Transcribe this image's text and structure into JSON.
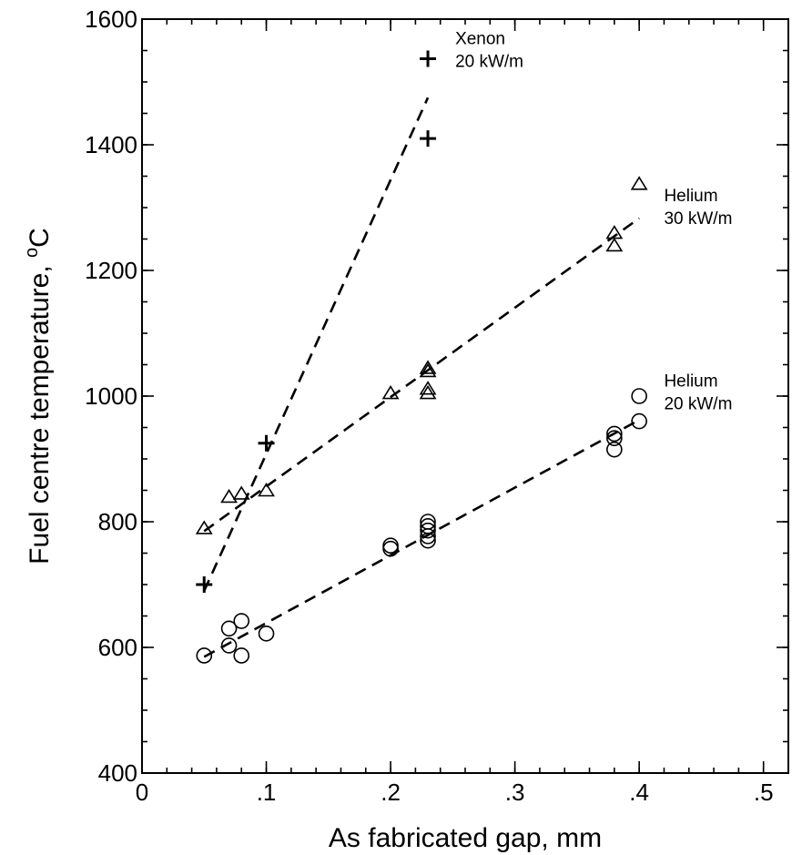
{
  "chart_data": {
    "type": "scatter",
    "title": "",
    "xlabel": "As fabricated gap, mm",
    "ylabel_main": "Fuel centre temperature, ",
    "ylabel_super": "o",
    "ylabel_tail": "C",
    "xlim": [
      0,
      0.52
    ],
    "ylim": [
      400,
      1600
    ],
    "x_ticks": [
      {
        "value": 0,
        "label": "0"
      },
      {
        "value": 0.1,
        "label": ".1"
      },
      {
        "value": 0.2,
        "label": ".2"
      },
      {
        "value": 0.3,
        "label": ".3"
      },
      {
        "value": 0.4,
        "label": ".4"
      },
      {
        "value": 0.5,
        "label": ".5"
      }
    ],
    "x_minor_step": 0.02,
    "y_ticks": [
      {
        "value": 400,
        "label": "400"
      },
      {
        "value": 600,
        "label": "600"
      },
      {
        "value": 800,
        "label": "800"
      },
      {
        "value": 1000,
        "label": "1000"
      },
      {
        "value": 1200,
        "label": "1200"
      },
      {
        "value": 1400,
        "label": "1400"
      },
      {
        "value": 1600,
        "label": "1600"
      }
    ],
    "y_minor_step": 50,
    "grid": false,
    "series": [
      {
        "key": "xenon",
        "marker": "plus",
        "annotation": [
          "Xenon",
          "20 kW/m"
        ],
        "points": [
          [
            0.05,
            700
          ],
          [
            0.1,
            925
          ],
          [
            0.23,
            1537
          ],
          [
            0.23,
            1410
          ]
        ],
        "fit": [
          [
            0.05,
            690
          ],
          [
            0.23,
            1475
          ]
        ]
      },
      {
        "key": "helium30",
        "marker": "triangle",
        "annotation": [
          "Helium",
          "30 kW/m"
        ],
        "points": [
          [
            0.05,
            790
          ],
          [
            0.07,
            840
          ],
          [
            0.08,
            845
          ],
          [
            0.1,
            850
          ],
          [
            0.2,
            1005
          ],
          [
            0.23,
            1045
          ],
          [
            0.23,
            1040
          ],
          [
            0.23,
            1012
          ],
          [
            0.23,
            1005
          ],
          [
            0.38,
            1260
          ],
          [
            0.38,
            1240
          ],
          [
            0.4,
            1338
          ]
        ],
        "fit": [
          [
            0.05,
            785
          ],
          [
            0.4,
            1283
          ]
        ]
      },
      {
        "key": "helium20",
        "marker": "circle",
        "annotation": [
          "Helium",
          "20 kW/m"
        ],
        "points": [
          [
            0.05,
            587
          ],
          [
            0.07,
            630
          ],
          [
            0.07,
            603
          ],
          [
            0.08,
            642
          ],
          [
            0.08,
            587
          ],
          [
            0.1,
            622
          ],
          [
            0.2,
            762
          ],
          [
            0.2,
            757
          ],
          [
            0.23,
            800
          ],
          [
            0.23,
            793
          ],
          [
            0.23,
            786
          ],
          [
            0.23,
            777
          ],
          [
            0.23,
            770
          ],
          [
            0.38,
            940
          ],
          [
            0.38,
            933
          ],
          [
            0.38,
            915
          ],
          [
            0.4,
            1000
          ],
          [
            0.4,
            960
          ]
        ],
        "fit": [
          [
            0.05,
            585
          ],
          [
            0.4,
            962
          ]
        ]
      }
    ]
  },
  "annotation_anchors": {
    "xenon": {
      "x": 0.252,
      "y": 1560
    },
    "helium30": {
      "x": 0.42,
      "y": 1310
    },
    "helium20": {
      "x": 0.42,
      "y": 1015
    }
  }
}
